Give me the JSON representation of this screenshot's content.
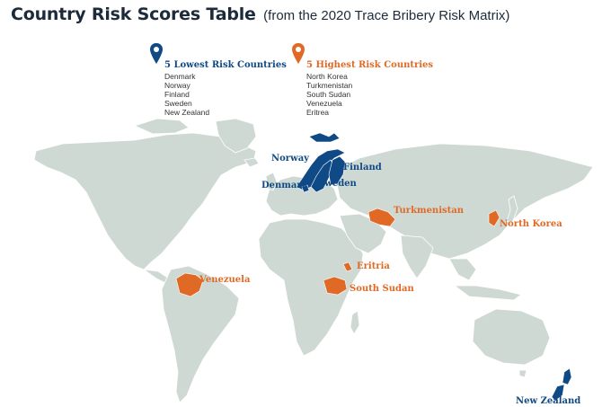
{
  "header": {
    "title": "Country Risk Scores Table",
    "subtitle": "(from the 2020 Trace Bribery Risk Matrix)"
  },
  "legend": {
    "lowest": {
      "title": "5 Lowest Risk Countries",
      "color": "#0f4a86",
      "icon": "location-pin-icon",
      "items": [
        "Denmark",
        "Norway",
        "Finland",
        "Sweden",
        "New Zealand"
      ]
    },
    "highest": {
      "title": "5 Highest Risk Countries",
      "color": "#e06a25",
      "icon": "location-pin-icon",
      "items": [
        "North Korea",
        "Turkmenistan",
        "South Sudan",
        "Venezuela",
        "Eritrea"
      ]
    }
  },
  "map": {
    "land_color": "#cfd9d4",
    "border_color": "#ffffff",
    "labels": {
      "norway": "Norway",
      "finland": "Finland",
      "denmark": "Denmark",
      "sweden": "Sweden",
      "new_zealand": "New Zealand",
      "turkmenistan": "Turkmenistan",
      "north_korea": "North Korea",
      "eritria": "Eritria",
      "venezuela": "Venezuela",
      "south_sudan": "South Sudan"
    }
  }
}
